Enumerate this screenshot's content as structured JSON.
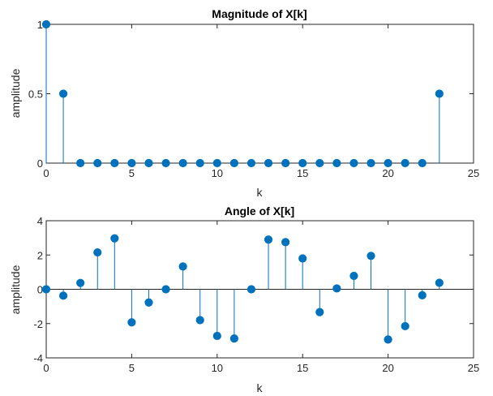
{
  "chart_data": [
    {
      "type": "stem",
      "title": "Magnitude of X[k]",
      "xlabel": "k",
      "ylabel": "amplitude",
      "xlim": [
        0,
        25
      ],
      "ylim": [
        0,
        1
      ],
      "xticks": [
        "0",
        "5",
        "10",
        "15",
        "20",
        "25"
      ],
      "yticks": [
        "0",
        "0.5",
        "1"
      ],
      "color": "#0072BD",
      "x": [
        0,
        1,
        2,
        3,
        4,
        5,
        6,
        7,
        8,
        9,
        10,
        11,
        12,
        13,
        14,
        15,
        16,
        17,
        18,
        19,
        20,
        21,
        22,
        23
      ],
      "values": [
        1,
        0.5,
        0,
        0,
        0,
        0,
        0,
        0,
        0,
        0,
        0,
        0,
        0,
        0,
        0,
        0,
        0,
        0,
        0,
        0,
        0,
        0,
        0,
        0.5
      ]
    },
    {
      "type": "stem",
      "title": "Angle of X[k]",
      "xlabel": "k",
      "ylabel": "amplitude",
      "xlim": [
        0,
        25
      ],
      "ylim": [
        -4,
        4
      ],
      "xticks": [
        "0",
        "5",
        "10",
        "15",
        "20",
        "25"
      ],
      "yticks": [
        "-4",
        "-2",
        "0",
        "2",
        "4"
      ],
      "color": "#0072BD",
      "x": [
        0,
        1,
        2,
        3,
        4,
        5,
        6,
        7,
        8,
        9,
        10,
        11,
        12,
        13,
        14,
        15,
        16,
        17,
        18,
        19,
        20,
        21,
        22,
        23
      ],
      "values": [
        0,
        -0.37,
        0.37,
        2.15,
        2.97,
        -1.93,
        -0.77,
        0,
        1.33,
        -1.8,
        -2.72,
        -2.87,
        0,
        2.9,
        2.75,
        1.8,
        -1.33,
        0.05,
        0.78,
        1.95,
        -2.93,
        -2.15,
        -0.35,
        0.38
      ]
    }
  ]
}
